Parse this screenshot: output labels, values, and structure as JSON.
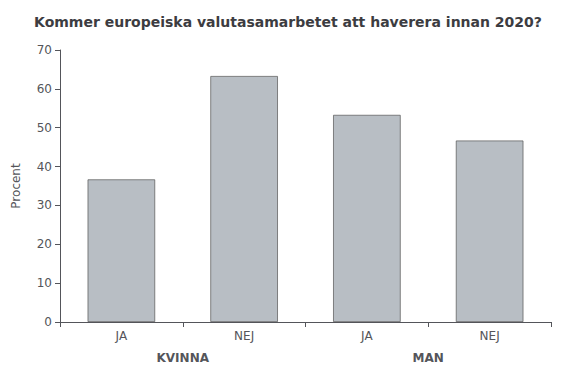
{
  "chart_data": {
    "type": "bar",
    "title": "Kommer europeiska valutasamarbetet att haverera innan 2020?",
    "ylabel": "Procent",
    "categories": [
      "JA",
      "NEJ",
      "JA",
      "NEJ"
    ],
    "group_labels": [
      "KVINNA",
      "MAN"
    ],
    "values": [
      36.7,
      63.3,
      53.3,
      46.7
    ],
    "color": "#b8bec4",
    "ylim": [
      0,
      70
    ],
    "yticks": [
      0,
      10,
      20,
      30,
      40,
      50,
      60,
      70
    ],
    "grid": false
  }
}
